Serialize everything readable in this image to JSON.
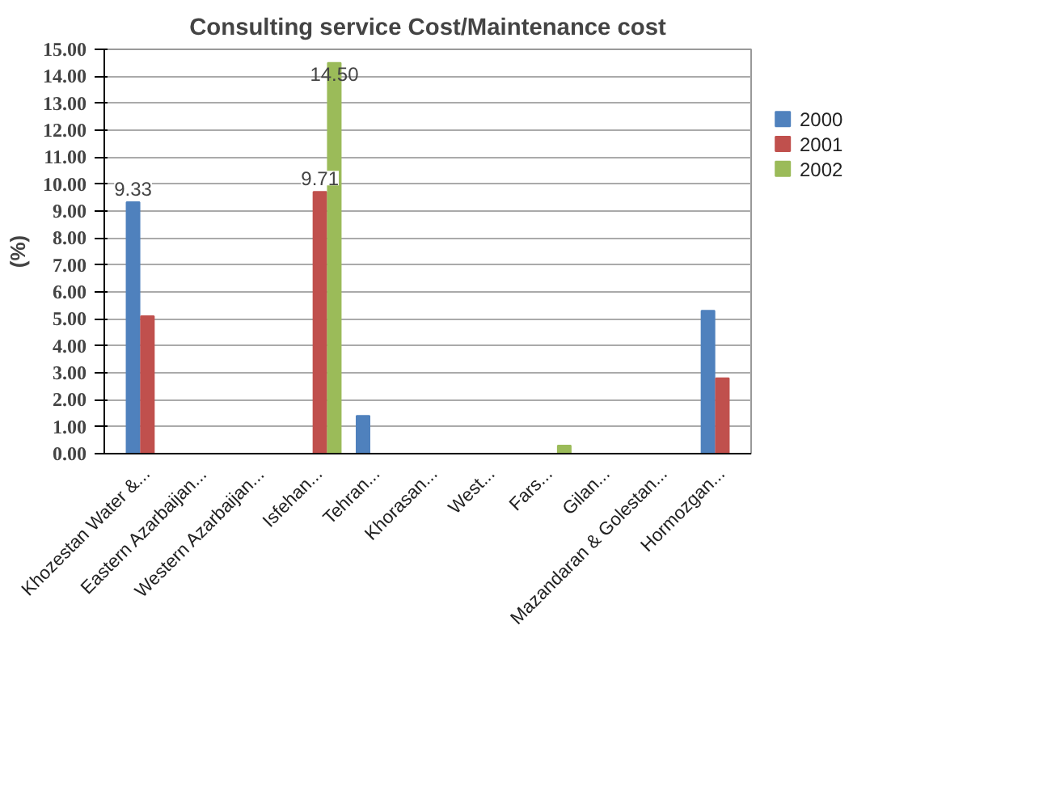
{
  "chart_data": {
    "type": "bar",
    "title": "Consulting service Cost/Maintenance cost",
    "ylabel": "(%)",
    "categories": [
      "Khozestan Water &...",
      "Eastern Azarbaijan...",
      "Western Azarbaijan...",
      "Isfehan...",
      "Tehran...",
      "Khorasan...",
      "West...",
      "Fars...",
      "Gilan...",
      "Mazandaran & Golestan...",
      "Hormozgan..."
    ],
    "series": [
      {
        "name": "2000",
        "color": "#4f81bd",
        "values": [
          9.33,
          0,
          0,
          0,
          1.4,
          0,
          0,
          0,
          0,
          0,
          5.3
        ],
        "value_labels": [
          "9.33",
          null,
          null,
          null,
          null,
          null,
          null,
          null,
          null,
          null,
          null
        ]
      },
      {
        "name": "2001",
        "color": "#c0504d",
        "values": [
          5.1,
          0,
          0,
          9.71,
          0,
          0,
          0,
          0,
          0,
          0,
          2.8
        ],
        "value_labels": [
          null,
          null,
          null,
          "9.71",
          null,
          null,
          null,
          null,
          null,
          null,
          null
        ]
      },
      {
        "name": "2002",
        "color": "#9bbb59",
        "values": [
          0,
          0,
          0,
          14.5,
          0,
          0,
          0,
          0.3,
          0,
          0,
          0
        ],
        "value_labels": [
          null,
          null,
          null,
          "14.50",
          null,
          null,
          null,
          null,
          null,
          null,
          null
        ]
      }
    ],
    "ylim": [
      0,
      15
    ],
    "yticks": [
      {
        "value": 0,
        "label": "0.00"
      },
      {
        "value": 1,
        "label": "1.00"
      },
      {
        "value": 2,
        "label": "2.00"
      },
      {
        "value": 3,
        "label": "3.00"
      },
      {
        "value": 4,
        "label": "4.00"
      },
      {
        "value": 5,
        "label": "5.00"
      },
      {
        "value": 6,
        "label": "6.00"
      },
      {
        "value": 7,
        "label": "7.00"
      },
      {
        "value": 8,
        "label": "8.00"
      },
      {
        "value": 9,
        "label": "9.00"
      },
      {
        "value": 10,
        "label": "10.00"
      },
      {
        "value": 11,
        "label": "11.00"
      },
      {
        "value": 12,
        "label": "12.00"
      },
      {
        "value": 13,
        "label": "13.00"
      },
      {
        "value": 14,
        "label": "14.00"
      },
      {
        "value": 15,
        "label": "15.00"
      }
    ],
    "grid": "y",
    "legend": "right"
  }
}
